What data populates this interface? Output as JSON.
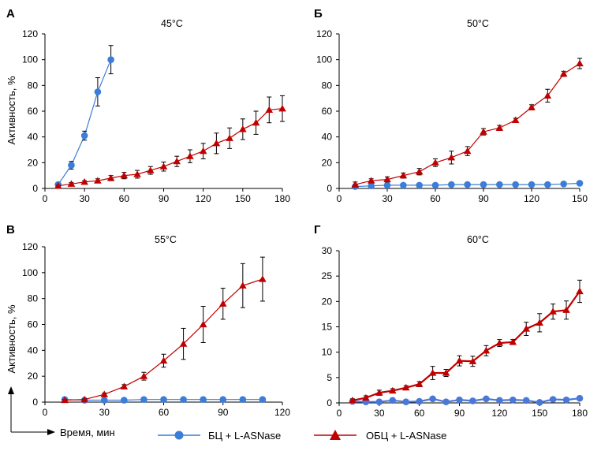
{
  "figure": {
    "x_axis_label": "Время, мин",
    "y_axis_label": "Активность, %",
    "legend": [
      {
        "name": "БЦ + L-ASNase",
        "color": "#3b7dd8",
        "marker": "circle"
      },
      {
        "name": "ОБЦ + L-ASNase",
        "color": "#c00000",
        "marker": "triangle"
      }
    ]
  },
  "chart_data": [
    {
      "type": "line",
      "panel_label": "А",
      "title": "45°C",
      "xlabel": "",
      "ylabel": "Активность, %",
      "xlim": [
        0,
        180
      ],
      "ylim": [
        0,
        120
      ],
      "xticks": [
        0,
        30,
        60,
        90,
        120,
        150,
        180
      ],
      "yticks": [
        0,
        20,
        40,
        60,
        80,
        100,
        120
      ],
      "series": [
        {
          "name": "БЦ + L-ASNase",
          "color": "#3b7dd8",
          "marker": "circle",
          "linewidth": 1.2,
          "x": [
            10,
            20,
            30,
            40,
            50
          ],
          "y": [
            3,
            18,
            41,
            75,
            100
          ],
          "err": [
            0,
            3,
            3.5,
            11,
            11
          ]
        },
        {
          "name": "ОБЦ + L-ASNase",
          "color": "#c00000",
          "marker": "triangle",
          "linewidth": 1.2,
          "x": [
            10,
            20,
            30,
            40,
            50,
            60,
            70,
            80,
            90,
            100,
            110,
            120,
            130,
            140,
            150,
            160,
            170,
            180
          ],
          "y": [
            2,
            3.5,
            5,
            6,
            8,
            10,
            11,
            14,
            17,
            21,
            25,
            29,
            35,
            39,
            46,
            51,
            61,
            62
          ],
          "err": [
            0.5,
            1,
            1,
            1.5,
            2,
            2.5,
            3,
            3,
            3.5,
            4,
            5,
            6,
            8,
            8,
            8,
            9,
            10,
            10
          ]
        }
      ]
    },
    {
      "type": "line",
      "panel_label": "Б",
      "title": "50°C",
      "xlabel": "",
      "ylabel": "",
      "xlim": [
        0,
        150
      ],
      "ylim": [
        0,
        120
      ],
      "xticks": [
        0,
        30,
        60,
        90,
        120,
        150
      ],
      "yticks": [
        0,
        20,
        40,
        60,
        80,
        100,
        120
      ],
      "series": [
        {
          "name": "БЦ + L-ASNase",
          "color": "#3b7dd8",
          "marker": "circle",
          "linewidth": 1.2,
          "x": [
            10,
            20,
            30,
            40,
            50,
            60,
            70,
            80,
            90,
            100,
            110,
            120,
            130,
            140,
            150
          ],
          "y": [
            1.5,
            2,
            2.5,
            2.5,
            2.5,
            2.5,
            3,
            3,
            3,
            3,
            3,
            3,
            3,
            3.5,
            4
          ],
          "err": [
            0,
            0,
            0,
            0,
            0,
            0,
            0,
            0,
            0,
            0,
            0,
            0,
            0,
            0,
            0
          ]
        },
        {
          "name": "ОБЦ + L-ASNase",
          "color": "#c00000",
          "marker": "triangle",
          "linewidth": 1.2,
          "x": [
            10,
            20,
            30,
            40,
            50,
            60,
            70,
            80,
            90,
            100,
            110,
            120,
            130,
            140,
            150
          ],
          "y": [
            3,
            6,
            7,
            10,
            13,
            20,
            24,
            29,
            44,
            47,
            53,
            63,
            72,
            89,
            97
          ],
          "err": [
            2,
            1.5,
            2,
            2,
            2.5,
            3,
            5,
            3.5,
            2.5,
            2,
            1.5,
            2,
            5,
            2,
            4
          ]
        }
      ]
    },
    {
      "type": "line",
      "panel_label": "В",
      "title": "55°C",
      "xlabel": "Время, мин",
      "ylabel": "Активность, %",
      "xlim": [
        0,
        120
      ],
      "ylim": [
        0,
        120
      ],
      "xticks": [
        0,
        30,
        60,
        90,
        120
      ],
      "yticks": [
        0,
        20,
        40,
        60,
        80,
        100,
        120
      ],
      "series": [
        {
          "name": "БЦ + L-ASNase",
          "color": "#3b7dd8",
          "marker": "circle",
          "linewidth": 1.2,
          "x": [
            10,
            20,
            30,
            40,
            50,
            60,
            70,
            80,
            90,
            100,
            110
          ],
          "y": [
            2,
            1.5,
            1.5,
            1.5,
            2,
            2,
            2,
            2,
            2,
            2,
            2
          ],
          "err": [
            0,
            0,
            0,
            0,
            0,
            0,
            0,
            0,
            0,
            0,
            0
          ]
        },
        {
          "name": "ОБЦ + L-ASNase",
          "color": "#c00000",
          "marker": "triangle",
          "linewidth": 1.2,
          "x": [
            10,
            20,
            30,
            40,
            50,
            60,
            70,
            80,
            90,
            100,
            110
          ],
          "y": [
            1.5,
            2,
            6,
            12,
            20,
            32,
            45,
            60,
            76,
            90,
            95
          ],
          "err": [
            0.5,
            0.5,
            1,
            1.5,
            3,
            5,
            12,
            14,
            12,
            17,
            17
          ]
        }
      ]
    },
    {
      "type": "line",
      "panel_label": "Г",
      "title": "60°C",
      "xlabel": "",
      "ylabel": "",
      "xlim": [
        0,
        180
      ],
      "ylim": [
        0,
        30
      ],
      "xticks": [
        0,
        30,
        60,
        90,
        120,
        150,
        180
      ],
      "yticks": [
        0,
        5,
        10,
        15,
        20,
        25,
        30
      ],
      "series": [
        {
          "name": "БЦ + L-ASNase",
          "color": "#4a78d8",
          "marker": "circle",
          "linewidth": 2.2,
          "x": [
            10,
            20,
            30,
            40,
            50,
            60,
            70,
            80,
            90,
            100,
            110,
            120,
            130,
            140,
            150,
            160,
            170,
            180
          ],
          "y": [
            0.3,
            0.2,
            0.2,
            0.5,
            0.2,
            0.3,
            0.8,
            0.2,
            0.6,
            0.4,
            0.8,
            0.5,
            0.6,
            0.5,
            0.1,
            0.7,
            0.6,
            0.9
          ],
          "err": [
            0,
            0,
            0,
            0,
            0,
            0,
            0,
            0,
            0,
            0,
            0,
            0,
            0,
            0,
            0,
            0,
            0,
            0
          ]
        },
        {
          "name": "ОБЦ + L-ASNase",
          "color": "#c00000",
          "marker": "triangle",
          "linewidth": 2.2,
          "x": [
            10,
            20,
            30,
            40,
            50,
            60,
            70,
            80,
            90,
            100,
            110,
            120,
            130,
            140,
            150,
            160,
            170,
            180
          ],
          "y": [
            0.5,
            1,
            2,
            2.4,
            3,
            3.7,
            5.9,
            5.9,
            8.3,
            8.2,
            10.3,
            11.8,
            12,
            14.6,
            15.8,
            18,
            18.3,
            22
          ],
          "err": [
            0.3,
            0.4,
            0.5,
            0.4,
            0.4,
            0.5,
            1.3,
            0.7,
            1,
            1,
            1,
            0.7,
            0.5,
            1.3,
            1.8,
            1.5,
            1.8,
            2.2
          ]
        }
      ]
    }
  ]
}
